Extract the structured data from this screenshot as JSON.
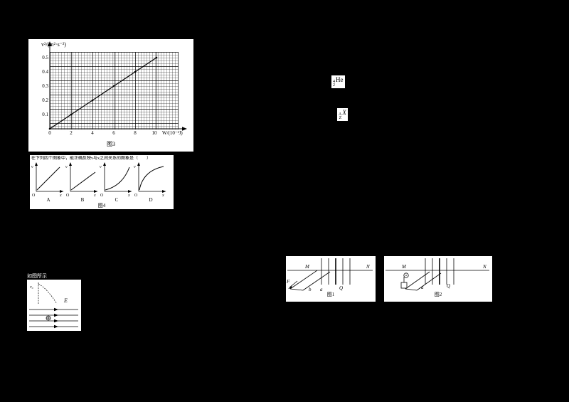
{
  "page": {
    "background": "#000000",
    "panel_background": "#ffffff",
    "ink": "#000000"
  },
  "fig3": {
    "caption": "图3",
    "ylabel": "v²/(m²·s⁻²)",
    "xlabel": "W/(10⁻²J)",
    "y_ticks": [
      "0.5",
      "0.4",
      "0.3",
      "0.2",
      "0.1"
    ],
    "x_ticks": [
      "0",
      "2",
      "4",
      "6",
      "8",
      "10"
    ]
  },
  "chart_data": {
    "type": "line",
    "title": "图3",
    "xlabel": "W/(10⁻²J)",
    "ylabel": "v²/(m²·s⁻²)",
    "x": [
      0,
      2,
      4,
      6,
      8,
      10
    ],
    "y": [
      0,
      0.1,
      0.2,
      0.3,
      0.4,
      0.5
    ],
    "xlim": [
      0,
      10
    ],
    "ylim": [
      0,
      0.5
    ],
    "grid": true,
    "legend": false
  },
  "formulas": {
    "helium": {
      "mass": "4",
      "charge": "2",
      "symbol": "He"
    },
    "nuclide": {
      "mass": "A",
      "charge": "Z",
      "symbol": "X"
    }
  },
  "fig4": {
    "caption": "图4",
    "prompt": "在下列四个图象中，能正确反映v与x之间关系的图象是（　　）",
    "y_label": "v",
    "x_label": "x",
    "origin": "O",
    "options": [
      {
        "label": "A",
        "curve": "linear-steep"
      },
      {
        "label": "B",
        "curve": "linear"
      },
      {
        "label": "C",
        "curve": "concave-up"
      },
      {
        "label": "D",
        "curve": "concave-down"
      }
    ]
  },
  "field_fig": {
    "pre_text": "如图所示",
    "field_label": "E",
    "velocity_label": "v₀"
  },
  "fig1": {
    "caption": "图1",
    "labels": {
      "M": "M",
      "N": "N",
      "F": "F",
      "b": "b",
      "a": "a",
      "Q": "Q"
    }
  },
  "fig2": {
    "caption": "图2",
    "labels": {
      "M": "M",
      "N": "N",
      "a": "a",
      "Q": "Q"
    }
  }
}
